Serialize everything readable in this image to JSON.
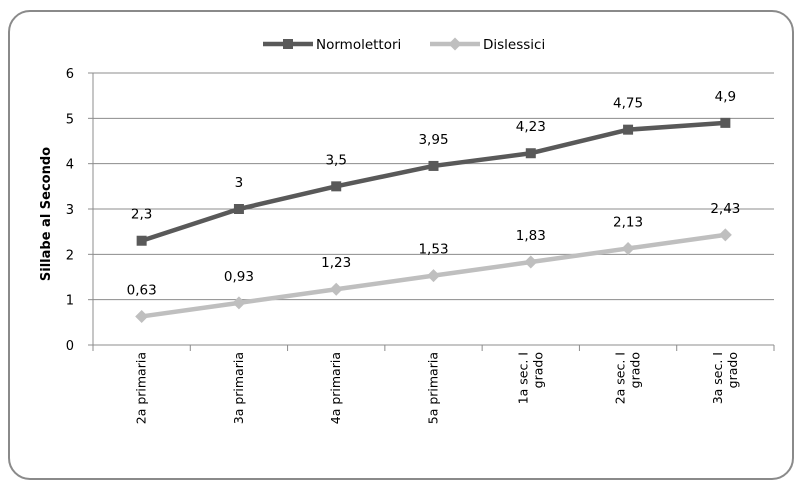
{
  "chart_data": {
    "type": "line",
    "categories": [
      "2a primaria",
      "3a primaria",
      "4a primaria",
      "5a primaria",
      "1a sec. I grado",
      "2a sec. I grado",
      "3a sec. I grado"
    ],
    "category_lines": [
      [
        "2a primaria"
      ],
      [
        "3a primaria"
      ],
      [
        "4a primaria"
      ],
      [
        "5a primaria"
      ],
      [
        "1a sec. I",
        "grado"
      ],
      [
        "2a sec. I",
        "grado"
      ],
      [
        "3a sec. I",
        "grado"
      ]
    ],
    "series": [
      {
        "name": "Normolettori",
        "values": [
          2.3,
          3,
          3.5,
          3.95,
          4.23,
          4.75,
          4.9
        ],
        "labels": [
          "2,3",
          "3",
          "3,5",
          "3,95",
          "4,23",
          "4,75",
          "4,9"
        ],
        "color": "#595959",
        "marker": "square"
      },
      {
        "name": "Dislessici",
        "values": [
          0.63,
          0.93,
          1.23,
          1.53,
          1.83,
          2.13,
          2.43
        ],
        "labels": [
          "0,63",
          "0,93",
          "1,23",
          "1,53",
          "1,83",
          "2,13",
          "2,43"
        ],
        "color": "#bfbfbf",
        "marker": "diamond"
      }
    ],
    "ylabel": "Sillabe al Secondo",
    "xlabel": "",
    "ylim": [
      0,
      6
    ],
    "yticks": [
      0,
      1,
      2,
      3,
      4,
      5,
      6
    ],
    "grid": true,
    "legend_position": "top"
  }
}
